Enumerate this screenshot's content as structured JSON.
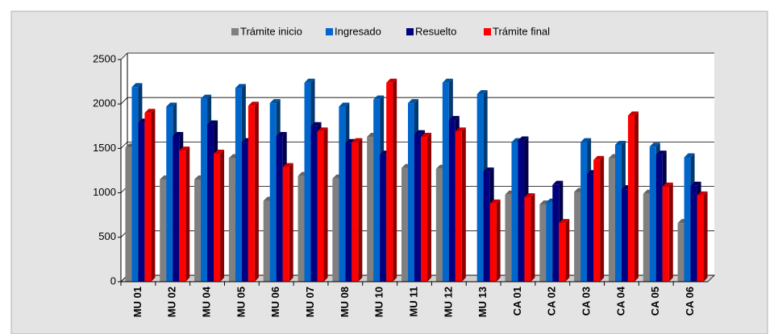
{
  "chart_data": {
    "type": "bar",
    "categories": [
      "MU 01",
      "MU 02",
      "MU 04",
      "MU 05",
      "MU 06",
      "MU 07",
      "MU 08",
      "MU 10",
      "MU 11",
      "MU 12",
      "MU 13",
      "CA 01",
      "CA 02",
      "CA 03",
      "CA 04",
      "CA 05",
      "CA 06"
    ],
    "series": [
      {
        "name": "Trámite inicio",
        "color": "#808080",
        "values": [
          1510,
          1150,
          1150,
          1390,
          910,
          1190,
          1160,
          1630,
          1280,
          1270,
          0,
          980,
          870,
          1010,
          1390,
          990,
          660
        ]
      },
      {
        "name": "Ingresado",
        "color": "#0066cc",
        "values": [
          2190,
          1970,
          2060,
          2180,
          2010,
          2240,
          1970,
          2050,
          2010,
          2240,
          2110,
          1570,
          890,
          1570,
          1540,
          1520,
          1400
        ]
      },
      {
        "name": "Resuelto",
        "color": "#000080",
        "values": [
          1790,
          1640,
          1770,
          1570,
          1640,
          1750,
          1560,
          1430,
          1660,
          1820,
          1240,
          1590,
          1090,
          1210,
          1040,
          1430,
          1080
        ]
      },
      {
        "name": "Trámite final",
        "color": "#ff0000",
        "values": [
          1900,
          1475,
          1440,
          1980,
          1290,
          1690,
          1570,
          2240,
          1630,
          1690,
          880,
          950,
          660,
          1370,
          1870,
          1070,
          970
        ]
      }
    ],
    "ylim": [
      0,
      2500
    ],
    "yticks": [
      0,
      500,
      1000,
      1500,
      2000,
      2500
    ],
    "grid": true,
    "legend": "top"
  }
}
